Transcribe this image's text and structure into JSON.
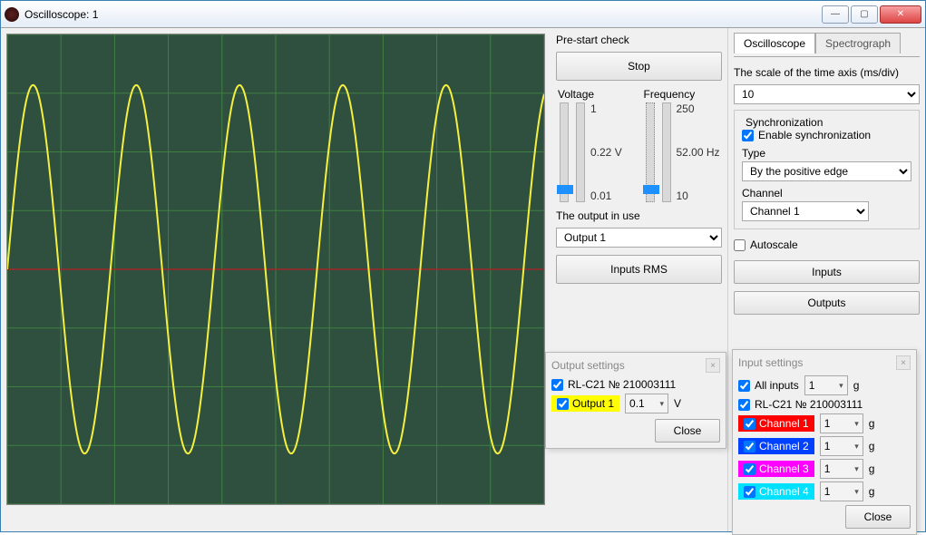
{
  "window": {
    "title": "Oscilloscope: 1"
  },
  "scope": {
    "bg": "#2f4f3f",
    "grid": "#3f8040",
    "axis": "#a02828",
    "trace": "#f5f040",
    "cols": 10,
    "rows": 8,
    "sine": {
      "amplitude": 0.85,
      "cycles": 5.2,
      "phase": 0
    }
  },
  "ctrl": {
    "prestart_label": "Pre-start check",
    "stop": "Stop",
    "voltage": {
      "label": "Voltage",
      "max": "1",
      "val": "0.22 V",
      "min": "0.01"
    },
    "frequency": {
      "label": "Frequency",
      "max": "250",
      "val": "52.00 Hz",
      "min": "10"
    },
    "output_in_use_label": "The output in use",
    "output_sel": "Output 1",
    "inputs_rms": "Inputs RMS"
  },
  "tabs": {
    "a": "Oscilloscope",
    "b": "Spectrograph"
  },
  "scale": {
    "label": "The scale of the time axis  (ms/div)",
    "value": "10"
  },
  "sync": {
    "group": "Synchronization",
    "enable": "Enable synchronization",
    "type_label": "Type",
    "type": "By the positive edge",
    "channel_label": "Channel",
    "channel": "Channel 1"
  },
  "autoscale": "Autoscale",
  "inputs_btn": "Inputs",
  "outputs_btn": "Outputs",
  "out_panel": {
    "title": "Output settings",
    "device": "RL-C21 № 210003111",
    "output1": "Output 1",
    "val": "0.1",
    "unit": "V",
    "close": "Close",
    "hl_bg": "#ffff00"
  },
  "in_panel": {
    "title": "Input settings",
    "all": "All inputs",
    "all_val": "1",
    "all_unit": "g",
    "device": "RL-C21 № 210003111",
    "close": "Close",
    "channels": [
      {
        "name": "Channel 1",
        "color": "#ff0000",
        "val": "1",
        "unit": "g"
      },
      {
        "name": "Channel 2",
        "color": "#0040ff",
        "val": "1",
        "unit": "g"
      },
      {
        "name": "Channel 3",
        "color": "#ff00ff",
        "val": "1",
        "unit": "g"
      },
      {
        "name": "Channel 4",
        "color": "#00e0ff",
        "val": "1",
        "unit": "g"
      }
    ]
  }
}
